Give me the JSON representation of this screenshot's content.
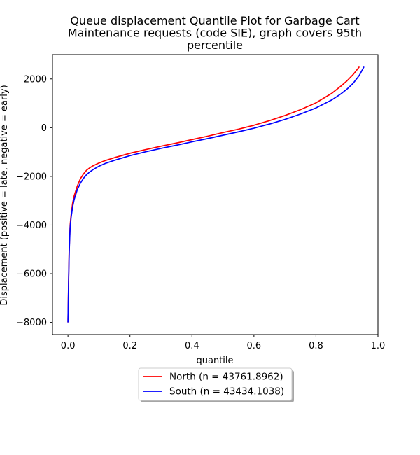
{
  "chart_data": {
    "type": "line",
    "title_lines": [
      "Queue displacement Quantile Plot for Garbage Cart",
      "Maintenance  requests (code SIE), graph covers 95th",
      "percentile"
    ],
    "xlabel": "quantile",
    "ylabel": "Displacement (positive = late, negative = early)",
    "xlim": [
      -0.05,
      1.0
    ],
    "ylim": [
      -8500,
      3000
    ],
    "x_ticks": [
      0.0,
      0.2,
      0.4,
      0.6,
      0.8,
      1.0
    ],
    "x_tick_labels": [
      "0.0",
      "0.2",
      "0.4",
      "0.6",
      "0.8",
      "1.0"
    ],
    "y_ticks": [
      -8000,
      -6000,
      -4000,
      -2000,
      0,
      2000
    ],
    "y_tick_labels": [
      "−8000",
      "−6000",
      "−4000",
      "−2000",
      "0",
      "2000"
    ],
    "grid": false,
    "legend_position": "below-center",
    "series": [
      {
        "name": "North (n = 43761.8962)",
        "color": "#ff0000",
        "x": [
          0.0,
          0.002,
          0.004,
          0.007,
          0.01,
          0.015,
          0.02,
          0.03,
          0.04,
          0.05,
          0.06,
          0.07,
          0.08,
          0.1,
          0.12,
          0.15,
          0.2,
          0.25,
          0.3,
          0.35,
          0.4,
          0.45,
          0.5,
          0.55,
          0.6,
          0.65,
          0.7,
          0.75,
          0.8,
          0.85,
          0.88,
          0.9,
          0.92,
          0.94
        ],
        "y": [
          -8000,
          -6300,
          -5000,
          -4000,
          -3600,
          -3100,
          -2800,
          -2400,
          -2100,
          -1900,
          -1750,
          -1650,
          -1570,
          -1450,
          -1350,
          -1230,
          -1050,
          -900,
          -760,
          -630,
          -490,
          -350,
          -200,
          -60,
          100,
          290,
          500,
          740,
          1020,
          1400,
          1700,
          1920,
          2180,
          2500
        ]
      },
      {
        "name": "South (n = 43434.1038)",
        "color": "#0000ff",
        "x": [
          0.0,
          0.002,
          0.004,
          0.007,
          0.01,
          0.015,
          0.02,
          0.03,
          0.04,
          0.05,
          0.06,
          0.07,
          0.08,
          0.1,
          0.12,
          0.15,
          0.2,
          0.25,
          0.3,
          0.35,
          0.4,
          0.45,
          0.5,
          0.55,
          0.6,
          0.65,
          0.7,
          0.75,
          0.8,
          0.85,
          0.88,
          0.9,
          0.92,
          0.94,
          0.955
        ],
        "y": [
          -8000,
          -6400,
          -5100,
          -4100,
          -3700,
          -3250,
          -2950,
          -2550,
          -2280,
          -2080,
          -1930,
          -1820,
          -1730,
          -1580,
          -1470,
          -1340,
          -1150,
          -990,
          -850,
          -720,
          -580,
          -450,
          -310,
          -170,
          -20,
          150,
          340,
          560,
          810,
          1130,
          1380,
          1580,
          1820,
          2150,
          2500
        ]
      }
    ]
  }
}
